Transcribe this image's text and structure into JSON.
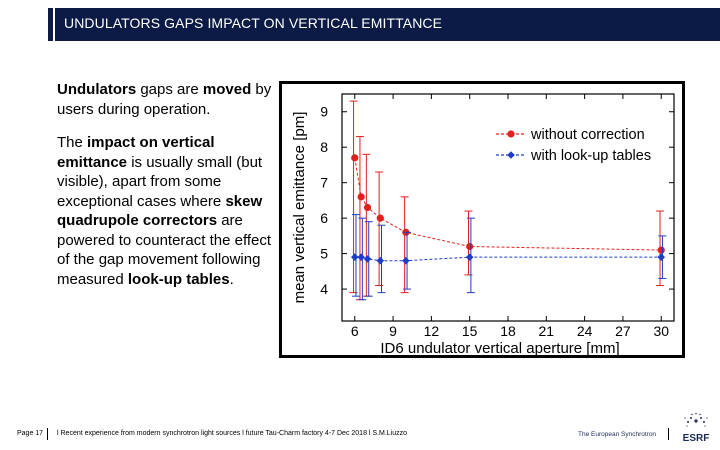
{
  "header": {
    "title": "UNDULATORS GAPS IMPACT ON VERTICAL EMITTANCE"
  },
  "body": {
    "para1": {
      "b1": "Undulators",
      "t1": " gaps are ",
      "b2": "moved",
      "t2": " by users during operation."
    },
    "para2": {
      "t1": "The ",
      "b1": "impact on vertical emittance",
      "t2": " is usually small (but visible), apart from some exceptional cases where ",
      "b2": "skew quadrupole correctors",
      "t3": " are powered to counteract the effect of the gap movement following measured ",
      "b3": "look-up tables",
      "t4": "."
    }
  },
  "chart_data": {
    "type": "line",
    "title": "",
    "xlabel": "ID6 undulator vertical aperture [mm]",
    "ylabel": "mean vertical emittance [pm]",
    "xlim": [
      5,
      31
    ],
    "ylim": [
      3.1,
      9.5
    ],
    "xticks": [
      6,
      9,
      12,
      15,
      18,
      21,
      24,
      27,
      30
    ],
    "yticks": [
      4,
      5,
      6,
      7,
      8,
      9
    ],
    "legend_position": "top-right",
    "series": [
      {
        "name": "without correction",
        "color": "#e0201c",
        "points": [
          {
            "x": 6.0,
            "y": 7.7,
            "err_low": 3.9,
            "err_high": 9.3
          },
          {
            "x": 6.5,
            "y": 6.6,
            "err_low": 3.7,
            "err_high": 8.3
          },
          {
            "x": 7.0,
            "y": 6.3,
            "err_low": 3.8,
            "err_high": 7.8
          },
          {
            "x": 8.0,
            "y": 6.0,
            "err_low": 4.1,
            "err_high": 7.3
          },
          {
            "x": 10.0,
            "y": 5.6,
            "err_low": 3.9,
            "err_high": 6.6
          },
          {
            "x": 15.0,
            "y": 5.2,
            "err_low": 4.4,
            "err_high": 6.2
          },
          {
            "x": 30.0,
            "y": 5.1,
            "err_low": 4.1,
            "err_high": 6.2
          }
        ]
      },
      {
        "name": "with look-up tables",
        "color": "#1f3cc8",
        "points": [
          {
            "x": 6.0,
            "y": 4.9,
            "err_low": 3.8,
            "err_high": 6.1
          },
          {
            "x": 6.5,
            "y": 4.9,
            "err_low": 3.7,
            "err_high": 6.0
          },
          {
            "x": 7.0,
            "y": 4.85,
            "err_low": 3.8,
            "err_high": 5.9
          },
          {
            "x": 8.0,
            "y": 4.8,
            "err_low": 3.9,
            "err_high": 5.8
          },
          {
            "x": 10.0,
            "y": 4.8,
            "err_low": 4.0,
            "err_high": 5.6
          },
          {
            "x": 15.0,
            "y": 4.9,
            "err_low": 3.9,
            "err_high": 6.0
          },
          {
            "x": 30.0,
            "y": 4.9,
            "err_low": 4.3,
            "err_high": 5.5
          }
        ]
      }
    ]
  },
  "footer": {
    "page": "Page 17",
    "text": "l Recent experience from modern synchrotron light sources l future Tau-Charm factory 4-7 Dec 2018 l S.M.Liuzzo",
    "brand": "The European Synchrotron",
    "logo_text": "ESRF",
    "logo_icon": "esrf-sunburst-icon"
  },
  "colors": {
    "header_bg": "#0b1b46",
    "brand_text": "#1c2b55"
  }
}
